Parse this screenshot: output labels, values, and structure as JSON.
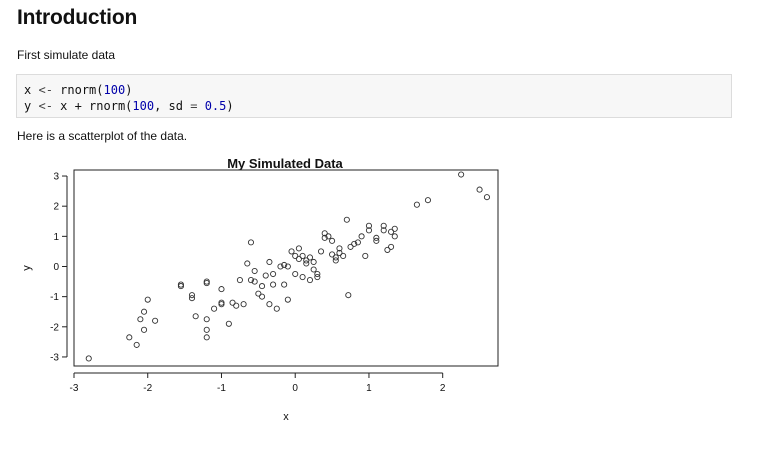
{
  "document": {
    "title": "Introduction",
    "intro_text": "First simulate data",
    "code": {
      "line1": {
        "var": "x",
        "assign": "<-",
        "fn": "rnorm(",
        "arg": "100",
        "close": ")"
      },
      "line2": {
        "var": "y",
        "assign": "<-",
        "expr": "x + rnorm(",
        "arg1": "100",
        "sep": ", sd ",
        "eq": "=",
        "arg2": "0.5",
        "close": ")"
      }
    },
    "plot_caption": "Here is a scatterplot of the data."
  },
  "chart_data": {
    "type": "scatter",
    "title": "My Simulated Data",
    "xlabel": "x",
    "ylabel": "y",
    "xlim": [
      -3.0,
      2.75
    ],
    "ylim": [
      -3.3,
      3.2
    ],
    "xticks": [
      -3,
      -2,
      -1,
      0,
      1,
      2
    ],
    "yticks": [
      -3,
      -2,
      -1,
      0,
      1,
      2,
      3
    ],
    "grid": false,
    "legend": "none",
    "marker": "open-circle",
    "points": [
      [
        -2.8,
        -3.05
      ],
      [
        -2.25,
        -2.35
      ],
      [
        -2.15,
        -2.6
      ],
      [
        -2.05,
        -2.1
      ],
      [
        -2.1,
        -1.75
      ],
      [
        -2.0,
        -1.1
      ],
      [
        -2.05,
        -1.5
      ],
      [
        -1.9,
        -1.8
      ],
      [
        -1.55,
        -0.6
      ],
      [
        -1.55,
        -0.65
      ],
      [
        -1.4,
        -0.95
      ],
      [
        -1.4,
        -1.05
      ],
      [
        -1.35,
        -1.65
      ],
      [
        -1.2,
        -0.5
      ],
      [
        -1.2,
        -0.55
      ],
      [
        -1.2,
        -1.75
      ],
      [
        -1.2,
        -2.1
      ],
      [
        -1.2,
        -2.35
      ],
      [
        -1.1,
        -1.4
      ],
      [
        -1.0,
        -1.25
      ],
      [
        -1.0,
        -1.2
      ],
      [
        -1.0,
        -0.75
      ],
      [
        -0.9,
        -1.9
      ],
      [
        -0.85,
        -1.2
      ],
      [
        -0.8,
        -1.3
      ],
      [
        -0.75,
        -0.45
      ],
      [
        -0.7,
        -1.25
      ],
      [
        -0.65,
        0.1
      ],
      [
        -0.6,
        -0.45
      ],
      [
        -0.55,
        -0.5
      ],
      [
        -0.55,
        -0.15
      ],
      [
        -0.5,
        -0.9
      ],
      [
        -0.45,
        -1.0
      ],
      [
        -0.45,
        -0.65
      ],
      [
        -0.4,
        -0.3
      ],
      [
        -0.35,
        -1.25
      ],
      [
        -0.3,
        -0.6
      ],
      [
        -0.3,
        -0.25
      ],
      [
        -0.25,
        -1.4
      ],
      [
        -0.2,
        0.0
      ],
      [
        -0.15,
        0.05
      ],
      [
        -0.15,
        -0.6
      ],
      [
        -0.1,
        0.0
      ],
      [
        -0.1,
        -1.1
      ],
      [
        -0.05,
        0.5
      ],
      [
        0.0,
        0.35
      ],
      [
        0.0,
        -0.25
      ],
      [
        0.05,
        0.25
      ],
      [
        0.1,
        -0.35
      ],
      [
        0.1,
        0.35
      ],
      [
        0.15,
        0.1
      ],
      [
        0.15,
        0.2
      ],
      [
        0.2,
        0.3
      ],
      [
        0.2,
        -0.45
      ],
      [
        0.25,
        0.15
      ],
      [
        0.3,
        -0.35
      ],
      [
        0.3,
        -0.25
      ],
      [
        0.35,
        0.5
      ],
      [
        0.4,
        1.1
      ],
      [
        0.4,
        0.95
      ],
      [
        0.45,
        1.0
      ],
      [
        0.5,
        0.4
      ],
      [
        0.5,
        0.85
      ],
      [
        0.55,
        0.2
      ],
      [
        0.55,
        0.3
      ],
      [
        0.6,
        0.6
      ],
      [
        0.6,
        0.45
      ],
      [
        0.65,
        0.35
      ],
      [
        0.7,
        1.55
      ],
      [
        0.72,
        -0.95
      ],
      [
        0.75,
        0.65
      ],
      [
        0.8,
        0.75
      ],
      [
        0.85,
        0.8
      ],
      [
        0.9,
        1.0
      ],
      [
        0.95,
        0.35
      ],
      [
        1.0,
        1.2
      ],
      [
        1.0,
        1.35
      ],
      [
        1.1,
        0.85
      ],
      [
        1.1,
        0.95
      ],
      [
        1.2,
        1.2
      ],
      [
        1.2,
        1.35
      ],
      [
        1.25,
        0.55
      ],
      [
        1.3,
        0.65
      ],
      [
        1.3,
        1.15
      ],
      [
        1.35,
        1.25
      ],
      [
        1.35,
        1.0
      ],
      [
        1.65,
        2.05
      ],
      [
        1.8,
        2.2
      ],
      [
        2.25,
        3.05
      ],
      [
        2.5,
        2.55
      ],
      [
        2.6,
        2.3
      ],
      [
        -0.6,
        0.8
      ],
      [
        0.05,
        0.6
      ],
      [
        -0.35,
        0.15
      ],
      [
        0.25,
        -0.1
      ]
    ],
    "colors": {
      "marker": "#333333",
      "axis": "#222222",
      "background": "#ffffff"
    }
  }
}
